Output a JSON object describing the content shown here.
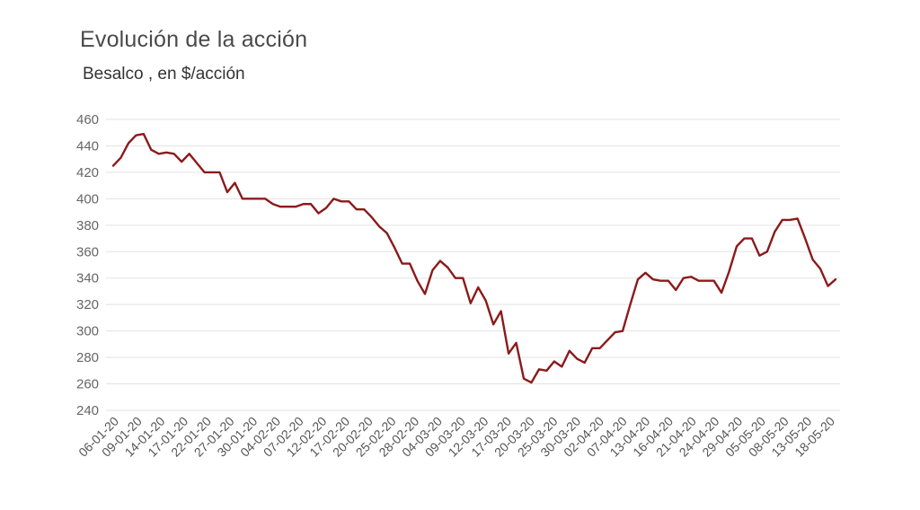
{
  "chart_data": {
    "type": "line",
    "title": "Evolución de la acción",
    "subtitle": "Besalco , en $/acción",
    "xlabel": "",
    "ylabel": "",
    "ylim": [
      240,
      460
    ],
    "y_ticks": [
      240,
      260,
      280,
      300,
      320,
      340,
      360,
      380,
      400,
      420,
      440,
      460
    ],
    "grid": true,
    "colors": {
      "line": "#8b1a1a",
      "grid": "#e3e3e3"
    },
    "x_tick_labels": [
      "06-01-20",
      "09-01-20",
      "14-01-20",
      "17-01-20",
      "22-01-20",
      "27-01-20",
      "30-01-20",
      "04-02-20",
      "07-02-20",
      "12-02-20",
      "17-02-20",
      "20-02-20",
      "25-02-20",
      "28-02-20",
      "04-03-20",
      "09-03-20",
      "12-03-20",
      "17-03-20",
      "20-03-20",
      "25-03-20",
      "30-03-20",
      "02-04-20",
      "07-04-20",
      "13-04-20",
      "16-04-20",
      "21-04-20",
      "24-04-20",
      "29-04-20",
      "05-05-20",
      "08-05-20",
      "13-05-20",
      "18-05-20"
    ],
    "series": [
      {
        "values": [
          425,
          431,
          442,
          448,
          449,
          437,
          434,
          435,
          434,
          428,
          434,
          427,
          420,
          420,
          420,
          405,
          412,
          400,
          400,
          400,
          400,
          396,
          394,
          394,
          394,
          396,
          396,
          389,
          393,
          400,
          398,
          398,
          392,
          392,
          386,
          379,
          374,
          363,
          351,
          351,
          338,
          328,
          346,
          353,
          348,
          340,
          340,
          321,
          333,
          323,
          305,
          315,
          283,
          291,
          264,
          261,
          271,
          270,
          277,
          273,
          285,
          279,
          276,
          287,
          287,
          293,
          299,
          300,
          320,
          339,
          344,
          339,
          338,
          338,
          331,
          340,
          341,
          338,
          338,
          338,
          329,
          345,
          364,
          370,
          370,
          357,
          360,
          375,
          384,
          384,
          385,
          370,
          354,
          347,
          334,
          339
        ]
      }
    ]
  }
}
